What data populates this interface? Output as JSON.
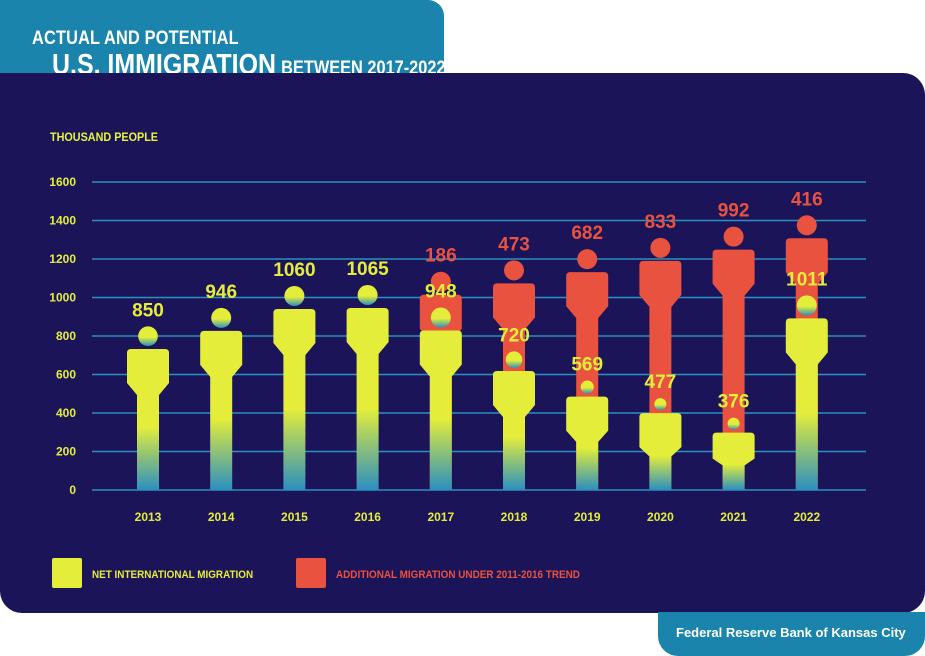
{
  "title": {
    "line1": "ACTUAL AND POTENTIAL",
    "main": "U.S. IMMIGRATION",
    "sub": "BETWEEN 2017-2022"
  },
  "footer": "Federal Reserve Bank of Kansas City",
  "colors": {
    "net": "#e4ee3a",
    "additional": "#e8523f",
    "panel": "#1c1459",
    "grid": "#2b8fbf",
    "accent": "#1a84ad"
  },
  "chart_data": {
    "type": "bar",
    "ylabel": "THOUSAND PEOPLE",
    "ylim": [
      0,
      1600
    ],
    "yticks": [
      0,
      200,
      400,
      600,
      800,
      1000,
      1200,
      1400,
      1600
    ],
    "categories": [
      "2013",
      "2014",
      "2015",
      "2016",
      "2017",
      "2018",
      "2019",
      "2020",
      "2021",
      "2022"
    ],
    "series": [
      {
        "name": "NET INTERNATIONAL MIGRATION",
        "values": [
          850,
          946,
          1060,
          1065,
          948,
          720,
          569,
          477,
          376,
          1011
        ]
      },
      {
        "name": "ADDITIONAL MIGRATION UNDER 2011-2016 TREND",
        "values": [
          null,
          null,
          null,
          null,
          186,
          473,
          682,
          833,
          992,
          416
        ]
      }
    ],
    "grid": true,
    "legend": "bottom"
  }
}
